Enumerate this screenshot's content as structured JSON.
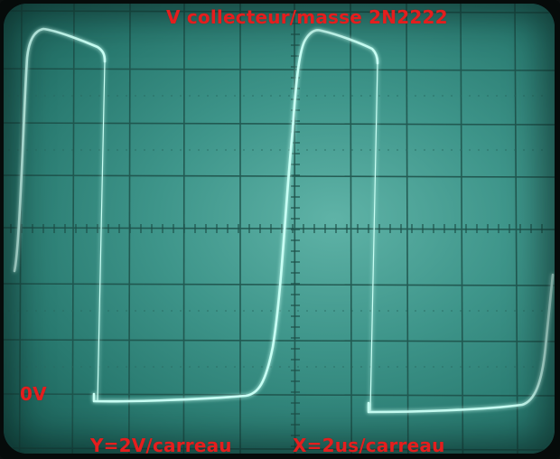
{
  "overlay": {
    "title": "V collecteur/masse 2N2222",
    "zero_label": "0V",
    "y_scale": "Y=2V/carreau",
    "x_scale": "X=2us/carreau"
  },
  "colors": {
    "trace": "#c8fff4",
    "trace_glow": "#7ff7e6",
    "grid": "#1d4f48",
    "label_red": "#e41e1e"
  },
  "trace_waveform": {
    "time_per_division_us": 2,
    "volts_per_division": 2,
    "baseline_volts": 0,
    "peak_volts": 16
  }
}
